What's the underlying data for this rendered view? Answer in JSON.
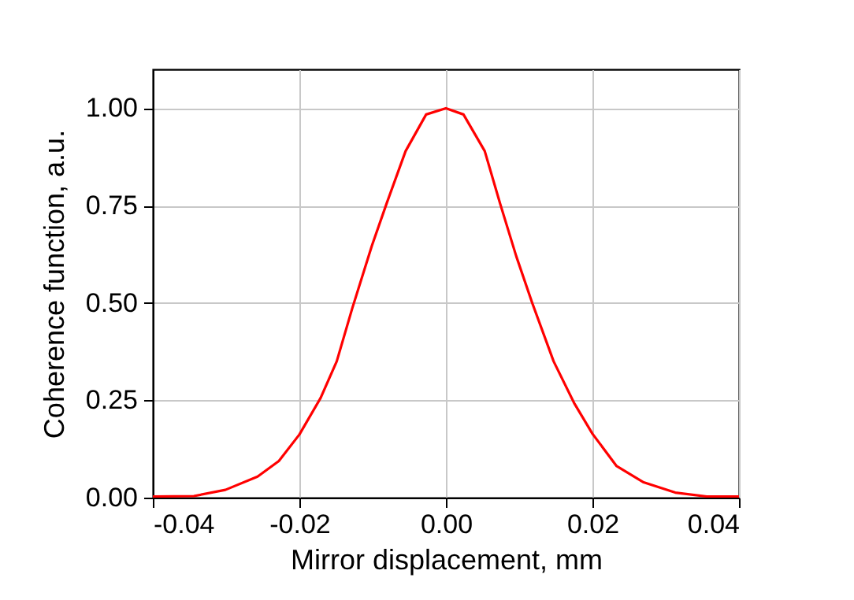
{
  "chart_data": {
    "type": "line",
    "xlabel": "Mirror displacement, mm",
    "ylabel": "Coherence function, a.u.",
    "x": [
      -0.04,
      -0.0344,
      -0.0301,
      -0.0257,
      -0.0228,
      -0.02,
      -0.0171,
      -0.0149,
      -0.0128,
      -0.0101,
      -0.0081,
      -0.0055,
      -0.0027,
      0,
      0.0024,
      0.0053,
      0.0074,
      0.0096,
      0.0118,
      0.0147,
      0.0175,
      0.02,
      0.0233,
      0.0269,
      0.0313,
      0.0356,
      0.04
    ],
    "series": [
      {
        "color": "#ff0000",
        "values": [
          0.003,
          0.004,
          0.02,
          0.054,
          0.094,
          0.162,
          0.256,
          0.35,
          0.485,
          0.647,
          0.755,
          0.89,
          0.984,
          1.0,
          0.984,
          0.89,
          0.755,
          0.62,
          0.499,
          0.35,
          0.243,
          0.164,
          0.081,
          0.04,
          0.013,
          0.003,
          0.003
        ]
      }
    ],
    "xlim": [
      -0.04,
      0.04
    ],
    "ylim": [
      0,
      1.1
    ],
    "xticks": [
      -0.04,
      -0.02,
      {
        "value": 0,
        "label": "0.00"
      },
      0.02,
      0.04
    ],
    "yticks": [
      {
        "value": 0,
        "label": "0.00"
      },
      0.25,
      {
        "value": 0.5,
        "label": "0.50"
      },
      0.75,
      {
        "value": 1,
        "label": "1.00"
      }
    ],
    "grid": true,
    "line_style": "solid",
    "marker": "none"
  }
}
